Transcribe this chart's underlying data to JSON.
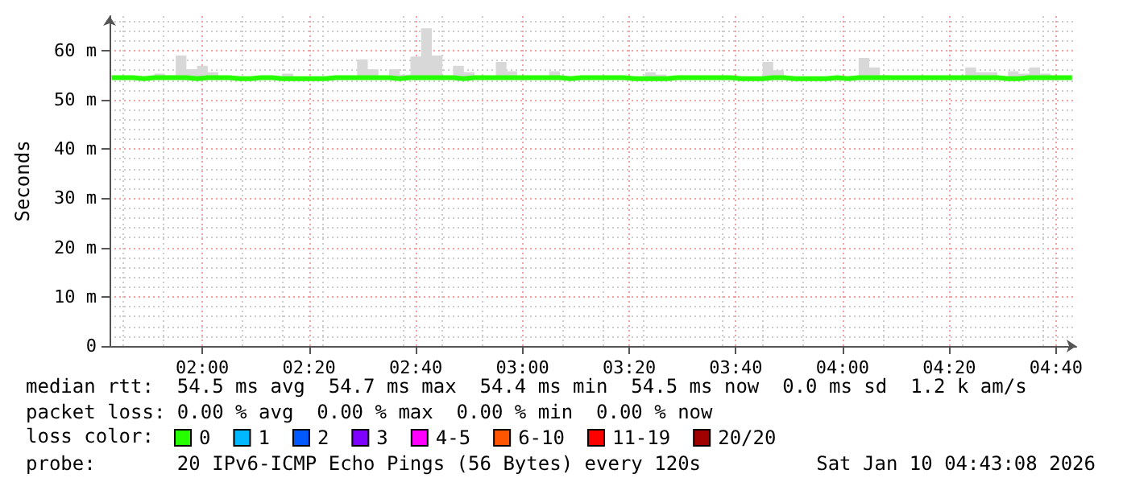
{
  "chart_data": {
    "type": "line",
    "ylabel": "Seconds",
    "legend_title": "loss color:",
    "legend": "bottom",
    "grid": true,
    "marker": "none",
    "line_style": "solid",
    "xlim": [
      1.71,
      4.73
    ],
    "ylim": [
      0,
      67
    ],
    "xticks": [
      {
        "value": 2,
        "label": "02:00"
      },
      {
        "value": 2.3333,
        "label": "02:20"
      },
      {
        "value": 2.6667,
        "label": "02:40"
      },
      {
        "value": 3,
        "label": "03:00"
      },
      {
        "value": 3.3333,
        "label": "03:20"
      },
      {
        "value": 3.6667,
        "label": "03:40"
      },
      {
        "value": 4,
        "label": "04:00"
      },
      {
        "value": 4.3333,
        "label": "04:20"
      },
      {
        "value": 4.6667,
        "label": "04:40"
      }
    ],
    "yticks": [
      0,
      {
        "value": 10,
        "label": "10 m"
      },
      {
        "value": 20,
        "label": "20 m"
      },
      {
        "value": 30,
        "label": "30 m"
      },
      {
        "value": 40,
        "label": "40 m"
      },
      {
        "value": 50,
        "label": "50 m"
      },
      {
        "value": 60,
        "label": "60 m"
      }
    ],
    "x": [
      1.7167,
      1.75,
      1.7833,
      1.8167,
      1.85,
      1.8833,
      1.9167,
      1.95,
      1.9833,
      2.0167,
      2.05,
      2.0833,
      2.1167,
      2.15,
      2.1833,
      2.2167,
      2.25,
      2.2833,
      2.3167,
      2.35,
      2.3833,
      2.4167,
      2.45,
      2.4833,
      2.5167,
      2.55,
      2.5833,
      2.6167,
      2.65,
      2.6833,
      2.7167,
      2.75,
      2.7833,
      2.8167,
      2.85,
      2.8833,
      2.9167,
      2.95,
      2.9833,
      3.0167,
      3.05,
      3.0833,
      3.1167,
      3.15,
      3.1833,
      3.2167,
      3.25,
      3.2833,
      3.3167,
      3.35,
      3.3833,
      3.4167,
      3.45,
      3.4833,
      3.5167,
      3.55,
      3.5833,
      3.6167,
      3.65,
      3.6833,
      3.7167,
      3.75,
      3.7833,
      3.8167,
      3.85,
      3.8833,
      3.9167,
      3.95,
      3.9833,
      4.0167,
      4.05,
      4.0833,
      4.1167,
      4.15,
      4.1833,
      4.2167,
      4.25,
      4.2833,
      4.3167,
      4.35,
      4.3833,
      4.4167,
      4.45,
      4.4833,
      4.5167,
      4.55,
      4.5833,
      4.6167,
      4.65,
      4.6833,
      4.7167
    ],
    "series": [
      {
        "name": "0",
        "color": "#26ff00",
        "values": [
          54.5,
          54.5,
          54.3,
          54.5,
          54.5,
          54.5,
          54.5,
          54.3,
          54.5,
          54.5,
          54.5,
          54.3,
          54.3,
          54.5,
          54.5,
          54.3,
          54.3,
          54.3,
          54.3,
          54.3,
          54.5,
          54.5,
          54.5,
          54.5,
          54.5,
          54.5,
          54.3,
          54.5,
          54.5,
          54.5,
          54.5,
          54.5,
          54.3,
          54.5,
          54.5,
          54.5,
          54.5,
          54.5,
          54.5,
          54.5,
          54.5,
          54.5,
          54.3,
          54.5,
          54.5,
          54.5,
          54.5,
          54.5,
          54.3,
          54.3,
          54.3,
          54.3,
          54.5,
          54.5,
          54.5,
          54.5,
          54.5,
          54.5,
          54.3,
          54.3,
          54.3,
          54.5,
          54.5,
          54.3,
          54.3,
          54.3,
          54.3,
          54.5,
          54.3,
          54.5,
          54.5,
          54.5,
          54.5,
          54.5,
          54.5,
          54.5,
          54.5,
          54.5,
          54.5,
          54.5,
          54.5,
          54.5,
          54.5,
          54.3,
          54.3,
          54.5,
          54.5,
          54.5,
          54.5,
          54.5,
          54.5
        ],
        "lower": [
          54.3,
          54.3,
          54.3,
          54.3,
          54.3,
          54.3,
          54.3,
          54.3,
          54.3,
          54.3,
          54.3,
          54.3,
          54.3,
          54.3,
          54.3,
          54.3,
          54.3,
          54.3,
          54.3,
          54.3,
          54.3,
          54.3,
          54.3,
          54.3,
          54.3,
          54.3,
          54.3,
          54.3,
          54.3,
          54.3,
          54.3,
          54.3,
          54.3,
          54.3,
          54.3,
          54.3,
          54.3,
          54.3,
          54.3,
          54.3,
          54.3,
          54.3,
          54.3,
          54.3,
          54.3,
          54.3,
          54.3,
          54.3,
          54.3,
          54.3,
          54.3,
          54.3,
          54.3,
          54.3,
          54.3,
          54.3,
          54.3,
          54.3,
          54.3,
          54.3,
          54.3,
          54.3,
          54.3,
          54.3,
          54.3,
          54.3,
          54.3,
          54.3,
          54.3,
          54.3,
          54.3,
          54.3,
          54.3,
          54.3,
          54.3,
          54.3,
          54.3,
          54.3,
          54.3,
          54.3,
          54.3,
          54.3,
          54.3,
          54.3,
          54.3,
          54.3,
          54.3,
          54.3,
          54.3,
          54.3,
          54.3
        ],
        "upper": [
          54.9,
          54.9,
          54.7,
          54.7,
          55.3,
          55,
          59,
          56.2,
          56.9,
          55.6,
          54.7,
          54.7,
          54.7,
          54.7,
          54.7,
          54.7,
          55.3,
          54.7,
          54.7,
          54.7,
          54.7,
          54.7,
          54.7,
          58.2,
          56.2,
          54.7,
          56.2,
          55.1,
          58.8,
          64.5,
          59,
          54.7,
          56.9,
          55.6,
          54.7,
          54.7,
          57.7,
          55.8,
          54.7,
          54.7,
          54.7,
          55.8,
          54.7,
          54.7,
          54.7,
          54.7,
          54.7,
          54.7,
          54.7,
          54.7,
          55.6,
          55.1,
          54.7,
          54.7,
          54.7,
          54.7,
          54.7,
          54.7,
          54.7,
          54.7,
          54.7,
          57.7,
          56,
          54.7,
          54.7,
          54.7,
          54.7,
          54.7,
          54.7,
          54.7,
          58.5,
          56.6,
          55,
          54.7,
          54.7,
          54.7,
          54.7,
          54.7,
          54.7,
          54.7,
          56.6,
          55.6,
          55.6,
          54.7,
          55.8,
          55.3,
          56.6,
          55.3,
          54.7,
          54.7,
          54.7
        ]
      },
      {
        "name": "1",
        "color": "#00b8ff",
        "values": [
          null,
          null,
          null,
          null,
          null,
          null,
          null,
          null,
          null,
          null,
          null,
          null,
          null,
          null,
          null,
          null,
          null,
          null,
          null,
          null,
          null,
          null,
          null,
          null,
          null,
          null,
          null,
          null,
          null,
          null,
          null,
          null,
          null,
          null,
          null,
          null,
          null,
          null,
          null,
          null,
          null,
          null,
          null,
          null,
          null,
          null,
          null,
          null,
          null,
          null,
          null,
          null,
          null,
          null,
          null,
          null,
          null,
          null,
          null,
          null,
          null,
          null,
          null,
          null,
          null,
          null,
          null,
          null,
          null,
          null,
          null,
          null,
          null,
          null,
          null,
          null,
          null,
          null,
          null,
          null,
          null,
          null,
          null,
          null,
          null,
          null,
          null,
          null,
          null,
          null,
          null
        ]
      },
      {
        "name": "2",
        "color": "#0059ff",
        "values": [
          null,
          null,
          null,
          null,
          null,
          null,
          null,
          null,
          null,
          null,
          null,
          null,
          null,
          null,
          null,
          null,
          null,
          null,
          null,
          null,
          null,
          null,
          null,
          null,
          null,
          null,
          null,
          null,
          null,
          null,
          null,
          null,
          null,
          null,
          null,
          null,
          null,
          null,
          null,
          null,
          null,
          null,
          null,
          null,
          null,
          null,
          null,
          null,
          null,
          null,
          null,
          null,
          null,
          null,
          null,
          null,
          null,
          null,
          null,
          null,
          null,
          null,
          null,
          null,
          null,
          null,
          null,
          null,
          null,
          null,
          null,
          null,
          null,
          null,
          null,
          null,
          null,
          null,
          null,
          null,
          null,
          null,
          null,
          null,
          null,
          null,
          null,
          null,
          null,
          null,
          null
        ]
      },
      {
        "name": "3",
        "color": "#7e00ff",
        "values": [
          null,
          null,
          null,
          null,
          null,
          null,
          null,
          null,
          null,
          null,
          null,
          null,
          null,
          null,
          null,
          null,
          null,
          null,
          null,
          null,
          null,
          null,
          null,
          null,
          null,
          null,
          null,
          null,
          null,
          null,
          null,
          null,
          null,
          null,
          null,
          null,
          null,
          null,
          null,
          null,
          null,
          null,
          null,
          null,
          null,
          null,
          null,
          null,
          null,
          null,
          null,
          null,
          null,
          null,
          null,
          null,
          null,
          null,
          null,
          null,
          null,
          null,
          null,
          null,
          null,
          null,
          null,
          null,
          null,
          null,
          null,
          null,
          null,
          null,
          null,
          null,
          null,
          null,
          null,
          null,
          null,
          null,
          null,
          null,
          null,
          null,
          null,
          null,
          null,
          null,
          null
        ]
      },
      {
        "name": "4-5",
        "color": "#ff00ff",
        "values": [
          null,
          null,
          null,
          null,
          null,
          null,
          null,
          null,
          null,
          null,
          null,
          null,
          null,
          null,
          null,
          null,
          null,
          null,
          null,
          null,
          null,
          null,
          null,
          null,
          null,
          null,
          null,
          null,
          null,
          null,
          null,
          null,
          null,
          null,
          null,
          null,
          null,
          null,
          null,
          null,
          null,
          null,
          null,
          null,
          null,
          null,
          null,
          null,
          null,
          null,
          null,
          null,
          null,
          null,
          null,
          null,
          null,
          null,
          null,
          null,
          null,
          null,
          null,
          null,
          null,
          null,
          null,
          null,
          null,
          null,
          null,
          null,
          null,
          null,
          null,
          null,
          null,
          null,
          null,
          null,
          null,
          null,
          null,
          null,
          null,
          null,
          null,
          null,
          null,
          null,
          null
        ]
      },
      {
        "name": "6-10",
        "color": "#ff5500",
        "values": [
          null,
          null,
          null,
          null,
          null,
          null,
          null,
          null,
          null,
          null,
          null,
          null,
          null,
          null,
          null,
          null,
          null,
          null,
          null,
          null,
          null,
          null,
          null,
          null,
          null,
          null,
          null,
          null,
          null,
          null,
          null,
          null,
          null,
          null,
          null,
          null,
          null,
          null,
          null,
          null,
          null,
          null,
          null,
          null,
          null,
          null,
          null,
          null,
          null,
          null,
          null,
          null,
          null,
          null,
          null,
          null,
          null,
          null,
          null,
          null,
          null,
          null,
          null,
          null,
          null,
          null,
          null,
          null,
          null,
          null,
          null,
          null,
          null,
          null,
          null,
          null,
          null,
          null,
          null,
          null,
          null,
          null,
          null,
          null,
          null,
          null,
          null,
          null,
          null,
          null,
          null
        ]
      },
      {
        "name": "11-19",
        "color": "#ff0000",
        "values": [
          null,
          null,
          null,
          null,
          null,
          null,
          null,
          null,
          null,
          null,
          null,
          null,
          null,
          null,
          null,
          null,
          null,
          null,
          null,
          null,
          null,
          null,
          null,
          null,
          null,
          null,
          null,
          null,
          null,
          null,
          null,
          null,
          null,
          null,
          null,
          null,
          null,
          null,
          null,
          null,
          null,
          null,
          null,
          null,
          null,
          null,
          null,
          null,
          null,
          null,
          null,
          null,
          null,
          null,
          null,
          null,
          null,
          null,
          null,
          null,
          null,
          null,
          null,
          null,
          null,
          null,
          null,
          null,
          null,
          null,
          null,
          null,
          null,
          null,
          null,
          null,
          null,
          null,
          null,
          null,
          null,
          null,
          null,
          null,
          null,
          null,
          null,
          null,
          null,
          null,
          null
        ]
      },
      {
        "name": "20/20",
        "color": "#a10000",
        "values": [
          null,
          null,
          null,
          null,
          null,
          null,
          null,
          null,
          null,
          null,
          null,
          null,
          null,
          null,
          null,
          null,
          null,
          null,
          null,
          null,
          null,
          null,
          null,
          null,
          null,
          null,
          null,
          null,
          null,
          null,
          null,
          null,
          null,
          null,
          null,
          null,
          null,
          null,
          null,
          null,
          null,
          null,
          null,
          null,
          null,
          null,
          null,
          null,
          null,
          null,
          null,
          null,
          null,
          null,
          null,
          null,
          null,
          null,
          null,
          null,
          null,
          null,
          null,
          null,
          null,
          null,
          null,
          null,
          null,
          null,
          null,
          null,
          null,
          null,
          null,
          null,
          null,
          null,
          null,
          null,
          null,
          null,
          null,
          null,
          null,
          null,
          null,
          null,
          null,
          null,
          null
        ]
      }
    ],
    "annotations": [
      "median rtt:  54.5 ms avg  54.7 ms max  54.4 ms min  54.5 ms now  0.0 ms sd  1.2 k am/s",
      "packet loss: 0.00 % avg  0.00 % max  0.00 % min  0.00 % now",
      "probe:       20 IPv6-ICMP Echo Pings (56 Bytes) every 120s",
      "Sat Jan 10 04:43:08 2026"
    ]
  }
}
